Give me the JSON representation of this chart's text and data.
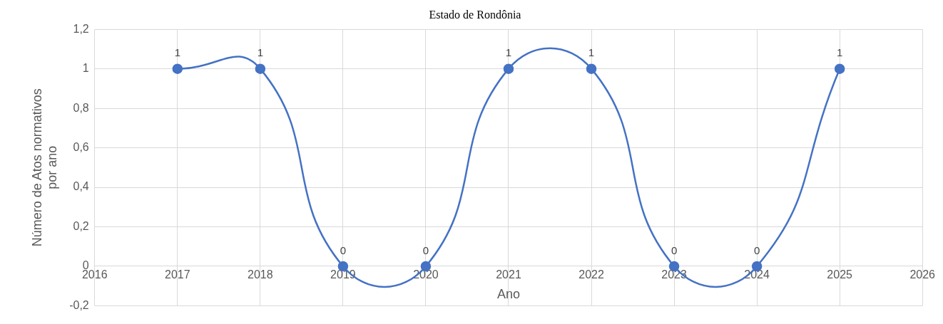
{
  "chart_data": {
    "type": "line",
    "title": "Estado de Rondônia",
    "xlabel": "Ano",
    "ylabel": "Número de Atos normativos por ano",
    "x": [
      2017,
      2018,
      2019,
      2020,
      2021,
      2022,
      2023,
      2024,
      2025
    ],
    "series": [
      {
        "color": "#4472c4",
        "values": [
          1,
          1,
          0,
          0,
          1,
          1,
          0,
          0,
          1
        ]
      }
    ],
    "xlim": [
      2016,
      2026
    ],
    "xticks": [
      2016,
      2017,
      2018,
      2019,
      2020,
      2021,
      2022,
      2023,
      2024,
      2025,
      2026
    ],
    "ylim": [
      -0.2,
      1.2
    ],
    "yticks": [
      {
        "value": -0.2,
        "label": "-0,2"
      },
      0,
      {
        "value": 0.2,
        "label": "0,2"
      },
      {
        "value": 0.4,
        "label": "0,4"
      },
      {
        "value": 0.6,
        "label": "0,6"
      },
      {
        "value": 0.8,
        "label": "0,8"
      },
      1,
      {
        "value": 1.2,
        "label": "1,2"
      }
    ],
    "grid": true,
    "legend": false,
    "marker": "circle",
    "line_style": "solid",
    "data_labels": true
  }
}
